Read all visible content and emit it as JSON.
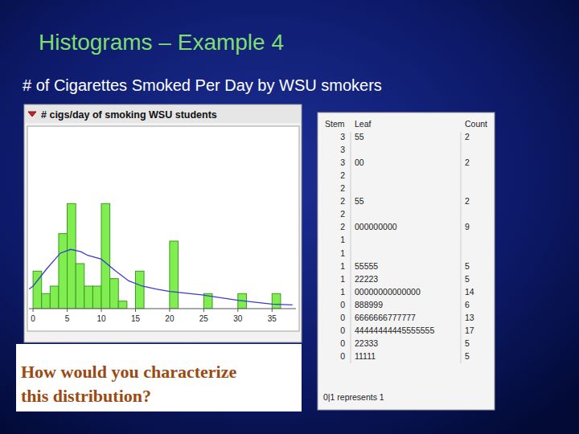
{
  "slide": {
    "title": "Histograms – Example 4",
    "subtitle": "# of Cigarettes Smoked Per Day by WSU smokers",
    "question": [
      "How would you characterize",
      "this distribution?"
    ]
  },
  "chart_data": {
    "type": "histogram",
    "title": "# cigs/day of smoking WSU students",
    "bins": [
      0,
      1.25,
      2.5,
      3.75,
      5,
      6.25,
      7.5,
      8.75,
      10,
      11.25,
      12.5,
      13.75,
      15,
      16.25,
      17.5,
      18.75,
      20,
      21.25,
      22.5,
      23.75,
      25,
      26.25,
      27.5,
      28.75,
      30,
      31.25,
      32.5,
      33.75,
      35,
      36.25,
      37.5
    ],
    "values": [
      5,
      2,
      3,
      10,
      14,
      6,
      3,
      3,
      14,
      4,
      1,
      0,
      5,
      0,
      0,
      0,
      9,
      0,
      0,
      0,
      2,
      0,
      0,
      0,
      2,
      0,
      0,
      0,
      2,
      0
    ],
    "color": "#80ee50",
    "xlim": [
      -0.6,
      38.5
    ],
    "xticks": [
      0,
      5,
      10,
      15,
      20,
      25,
      30,
      35
    ],
    "ylim": [
      0,
      24
    ],
    "tick_labels": "x",
    "density": {
      "x": [
        -0.6,
        0,
        2,
        4,
        5.5,
        7,
        8,
        10,
        12,
        14,
        16,
        18,
        20,
        25,
        30,
        35,
        38
      ],
      "values": [
        2.6,
        3.0,
        5.3,
        7.4,
        7.9,
        7.6,
        7.1,
        6.6,
        5.1,
        3.7,
        3.0,
        2.6,
        2.3,
        1.8,
        1.1,
        0.6,
        0.5
      ],
      "color": "#3b3bd0"
    }
  },
  "stem_leaf": {
    "headers": [
      "Stem",
      "Leaf",
      "Count"
    ],
    "rows": [
      {
        "stem": "3",
        "leaf": "55",
        "count": 2
      },
      {
        "stem": "3",
        "leaf": null,
        "count": null
      },
      {
        "stem": "3",
        "leaf": "00",
        "count": 2
      },
      {
        "stem": "2",
        "leaf": null,
        "count": null
      },
      {
        "stem": "2",
        "leaf": null,
        "count": null
      },
      {
        "stem": "2",
        "leaf": "55",
        "count": 2
      },
      {
        "stem": "2",
        "leaf": null,
        "count": null
      },
      {
        "stem": "2",
        "leaf": "000000000",
        "count": 9
      },
      {
        "stem": "1",
        "leaf": null,
        "count": null
      },
      {
        "stem": "1",
        "leaf": null,
        "count": null
      },
      {
        "stem": "1",
        "leaf": "55555",
        "count": 5
      },
      {
        "stem": "1",
        "leaf": "22223",
        "count": 5
      },
      {
        "stem": "1",
        "leaf": "00000000000000",
        "count": 14
      },
      {
        "stem": "0",
        "leaf": "888999",
        "count": 6
      },
      {
        "stem": "0",
        "leaf": "6666666777777",
        "count": 13
      },
      {
        "stem": "0",
        "leaf": "44444444445555555",
        "count": 17
      },
      {
        "stem": "0",
        "leaf": "22333",
        "count": 5
      },
      {
        "stem": "0",
        "leaf": "11111",
        "count": 5
      }
    ],
    "footer": "0|1 represents 1"
  }
}
